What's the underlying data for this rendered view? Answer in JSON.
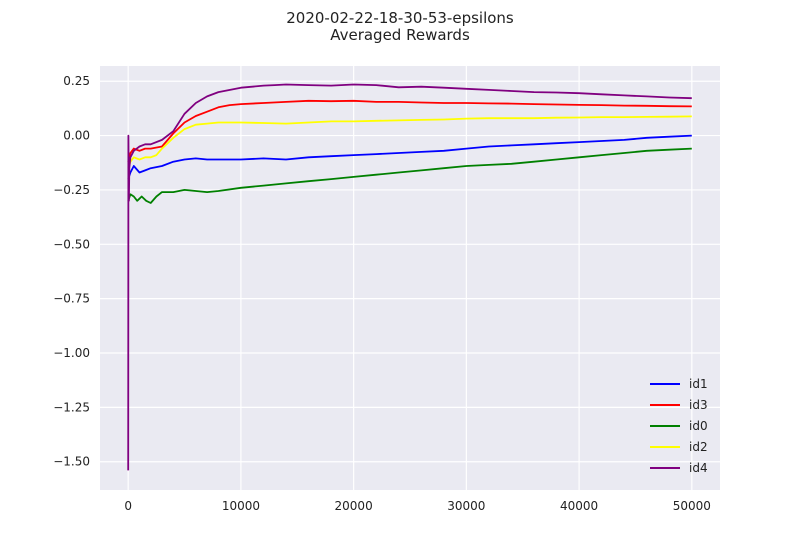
{
  "chart_data": {
    "type": "line",
    "title": "2020-02-22-18-30-53-epsilons",
    "subtitle": "Averaged Rewards",
    "xlabel": "",
    "ylabel": "",
    "xlim": [
      -2500,
      52500
    ],
    "ylim": [
      -1.63,
      0.32
    ],
    "xticks": [
      0,
      10000,
      20000,
      30000,
      40000,
      50000
    ],
    "yticks": [
      0.25,
      0.0,
      -0.25,
      -0.5,
      -0.75,
      -1.0,
      -1.25,
      -1.5
    ],
    "xtick_labels": [
      "0",
      "10000",
      "20000",
      "30000",
      "40000",
      "50000"
    ],
    "ytick_labels": [
      "0.25",
      "0.00",
      "−0.25",
      "−0.50",
      "−0.75",
      "−1.00",
      "−1.25",
      "−1.50"
    ],
    "grid": true,
    "legend_position": "bottom-right",
    "background": "#EAEAF2",
    "series": [
      {
        "name": "id1",
        "color": "#0000FF",
        "x": [
          0,
          200,
          500,
          1000,
          1500,
          2000,
          3000,
          4000,
          5000,
          6000,
          7000,
          8000,
          10000,
          12000,
          14000,
          16000,
          18000,
          20000,
          22000,
          24000,
          26000,
          28000,
          30000,
          32000,
          34000,
          36000,
          38000,
          40000,
          42000,
          44000,
          46000,
          48000,
          50000
        ],
        "y": [
          -0.2,
          -0.17,
          -0.14,
          -0.17,
          -0.16,
          -0.15,
          -0.14,
          -0.12,
          -0.11,
          -0.105,
          -0.11,
          -0.11,
          -0.11,
          -0.105,
          -0.11,
          -0.1,
          -0.095,
          -0.09,
          -0.085,
          -0.08,
          -0.075,
          -0.07,
          -0.06,
          -0.05,
          -0.045,
          -0.04,
          -0.035,
          -0.03,
          -0.025,
          -0.02,
          -0.01,
          -0.005,
          0.0
        ]
      },
      {
        "name": "id3",
        "color": "#FF0000",
        "x": [
          0,
          200,
          500,
          1000,
          1500,
          2000,
          3000,
          4000,
          5000,
          6000,
          7000,
          8000,
          9000,
          10000,
          12000,
          14000,
          16000,
          18000,
          20000,
          22000,
          24000,
          26000,
          28000,
          30000,
          32000,
          34000,
          36000,
          38000,
          40000,
          42000,
          44000,
          46000,
          48000,
          50000
        ],
        "y": [
          -0.12,
          -0.08,
          -0.06,
          -0.07,
          -0.06,
          -0.06,
          -0.05,
          0.01,
          0.06,
          0.09,
          0.11,
          0.13,
          0.14,
          0.145,
          0.15,
          0.155,
          0.16,
          0.158,
          0.16,
          0.155,
          0.155,
          0.152,
          0.15,
          0.15,
          0.148,
          0.147,
          0.145,
          0.143,
          0.141,
          0.14,
          0.138,
          0.137,
          0.135,
          0.134
        ]
      },
      {
        "name": "id0",
        "color": "#008000",
        "x": [
          0,
          200,
          500,
          800,
          1200,
          1600,
          2000,
          2500,
          3000,
          4000,
          5000,
          6000,
          7000,
          8000,
          10000,
          12000,
          14000,
          16000,
          18000,
          20000,
          22000,
          24000,
          26000,
          28000,
          30000,
          32000,
          34000,
          36000,
          38000,
          40000,
          42000,
          44000,
          46000,
          48000,
          50000
        ],
        "y": [
          -0.3,
          -0.27,
          -0.28,
          -0.3,
          -0.28,
          -0.3,
          -0.31,
          -0.28,
          -0.26,
          -0.26,
          -0.25,
          -0.255,
          -0.26,
          -0.255,
          -0.24,
          -0.23,
          -0.22,
          -0.21,
          -0.2,
          -0.19,
          -0.18,
          -0.17,
          -0.16,
          -0.15,
          -0.14,
          -0.135,
          -0.13,
          -0.12,
          -0.11,
          -0.1,
          -0.09,
          -0.08,
          -0.07,
          -0.065,
          -0.06
        ]
      },
      {
        "name": "id2",
        "color": "#FFFF00",
        "x": [
          0,
          200,
          500,
          1000,
          1500,
          2000,
          2500,
          3000,
          4000,
          5000,
          6000,
          7000,
          8000,
          10000,
          12000,
          14000,
          16000,
          18000,
          20000,
          22000,
          24000,
          26000,
          28000,
          30000,
          32000,
          34000,
          36000,
          38000,
          40000,
          42000,
          44000,
          46000,
          48000,
          50000
        ],
        "y": [
          -0.15,
          -0.12,
          -0.1,
          -0.11,
          -0.1,
          -0.1,
          -0.09,
          -0.06,
          -0.01,
          0.03,
          0.05,
          0.055,
          0.06,
          0.06,
          0.058,
          0.055,
          0.06,
          0.065,
          0.065,
          0.068,
          0.07,
          0.072,
          0.074,
          0.078,
          0.08,
          0.08,
          0.08,
          0.082,
          0.083,
          0.085,
          0.085,
          0.086,
          0.087,
          0.088
        ]
      },
      {
        "name": "id4",
        "color": "#800080",
        "x": [
          0,
          20,
          60,
          100,
          200,
          500,
          1000,
          1500,
          2000,
          3000,
          4000,
          5000,
          6000,
          7000,
          8000,
          10000,
          11000,
          12000,
          13000,
          14000,
          16000,
          18000,
          20000,
          22000,
          24000,
          26000,
          28000,
          30000,
          32000,
          34000,
          36000,
          38000,
          40000,
          42000,
          44000,
          46000,
          48000,
          50000
        ],
        "y": [
          -1.54,
          0.0,
          -0.3,
          -0.15,
          -0.1,
          -0.07,
          -0.05,
          -0.04,
          -0.04,
          -0.02,
          0.02,
          0.1,
          0.15,
          0.18,
          0.2,
          0.22,
          0.225,
          0.23,
          0.232,
          0.235,
          0.232,
          0.23,
          0.235,
          0.232,
          0.222,
          0.225,
          0.22,
          0.215,
          0.21,
          0.205,
          0.2,
          0.198,
          0.195,
          0.19,
          0.185,
          0.18,
          0.175,
          0.172
        ]
      }
    ]
  }
}
